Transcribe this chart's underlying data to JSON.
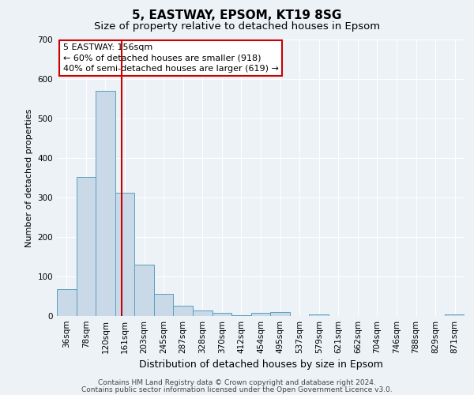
{
  "title": "5, EASTWAY, EPSOM, KT19 8SG",
  "subtitle": "Size of property relative to detached houses in Epsom",
  "xlabel": "Distribution of detached houses by size in Epsom",
  "ylabel": "Number of detached properties",
  "categories": [
    "36sqm",
    "78sqm",
    "120sqm",
    "161sqm",
    "203sqm",
    "245sqm",
    "287sqm",
    "328sqm",
    "370sqm",
    "412sqm",
    "454sqm",
    "495sqm",
    "537sqm",
    "579sqm",
    "621sqm",
    "662sqm",
    "704sqm",
    "746sqm",
    "788sqm",
    "829sqm",
    "871sqm"
  ],
  "values": [
    68,
    352,
    570,
    313,
    130,
    57,
    27,
    15,
    8,
    3,
    8,
    10,
    0,
    5,
    0,
    0,
    0,
    0,
    0,
    0,
    5
  ],
  "bar_color": "#c9d9e8",
  "bar_edge_color": "#5a9fc0",
  "annotation_text": "5 EASTWAY: 156sqm\n← 60% of detached houses are smaller (918)\n40% of semi-detached houses are larger (619) →",
  "annotation_box_color": "#ffffff",
  "annotation_box_edge_color": "#cc0000",
  "ylim": [
    0,
    700
  ],
  "yticks": [
    0,
    100,
    200,
    300,
    400,
    500,
    600,
    700
  ],
  "footer_line1": "Contains HM Land Registry data © Crown copyright and database right 2024.",
  "footer_line2": "Contains public sector information licensed under the Open Government Licence v3.0.",
  "background_color": "#edf2f7",
  "grid_color": "#ffffff",
  "vline_color": "#cc0000",
  "vline_pos": 2.857,
  "title_fontsize": 11,
  "subtitle_fontsize": 9.5,
  "ylabel_fontsize": 8,
  "xlabel_fontsize": 9,
  "tick_fontsize": 7.5,
  "annotation_fontsize": 8,
  "footer_fontsize": 6.5
}
